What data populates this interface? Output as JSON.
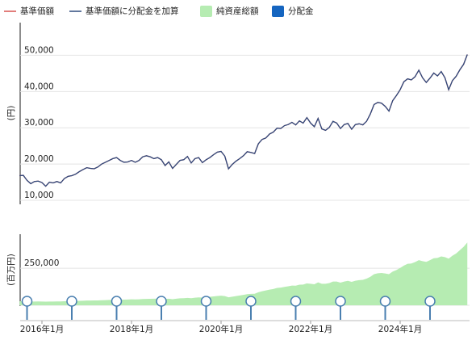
{
  "chart_data": {
    "type": "line",
    "ylabel": "(円)",
    "y2label": "(百万円)",
    "x": [
      "2015-07",
      "2015-08",
      "2015-09",
      "2015-10",
      "2015-11",
      "2015-12",
      "2016-01",
      "2016-02",
      "2016-03",
      "2016-04",
      "2016-05",
      "2016-06",
      "2016-07",
      "2016-08",
      "2016-09",
      "2016-10",
      "2016-11",
      "2016-12",
      "2017-01",
      "2017-02",
      "2017-03",
      "2017-04",
      "2017-05",
      "2017-06",
      "2017-07",
      "2017-08",
      "2017-09",
      "2017-10",
      "2017-11",
      "2017-12",
      "2018-01",
      "2018-02",
      "2018-03",
      "2018-04",
      "2018-05",
      "2018-06",
      "2018-07",
      "2018-08",
      "2018-09",
      "2018-10",
      "2018-11",
      "2018-12",
      "2019-01",
      "2019-02",
      "2019-03",
      "2019-04",
      "2019-05",
      "2019-06",
      "2019-07",
      "2019-08",
      "2019-09",
      "2019-10",
      "2019-11",
      "2019-12",
      "2020-01",
      "2020-02",
      "2020-03",
      "2020-04",
      "2020-05",
      "2020-06",
      "2020-07",
      "2020-08",
      "2020-09",
      "2020-10",
      "2020-11",
      "2020-12",
      "2021-01",
      "2021-02",
      "2021-03",
      "2021-04",
      "2021-05",
      "2021-06",
      "2021-07",
      "2021-08",
      "2021-09",
      "2021-10",
      "2021-11",
      "2021-12",
      "2022-01",
      "2022-02",
      "2022-03",
      "2022-04",
      "2022-05",
      "2022-06",
      "2022-07",
      "2022-08",
      "2022-09",
      "2022-10",
      "2022-11",
      "2022-12",
      "2023-01",
      "2023-02",
      "2023-03",
      "2023-04",
      "2023-05",
      "2023-06",
      "2023-07",
      "2023-08",
      "2023-09",
      "2023-10",
      "2023-11",
      "2023-12",
      "2024-01",
      "2024-02",
      "2024-03",
      "2024-04",
      "2024-05",
      "2024-06",
      "2024-07",
      "2024-08",
      "2024-09",
      "2024-10",
      "2024-11",
      "2024-12",
      "2025-01",
      "2025-02",
      "2025-03",
      "2025-04",
      "2025-05",
      "2025-06",
      "2025-07"
    ],
    "xticks": [
      {
        "value": "2016-01",
        "label": "2016年1月"
      },
      {
        "value": "2018-01",
        "label": "2018年1月"
      },
      {
        "value": "2020-01",
        "label": "2020年1月"
      },
      {
        "value": "2022-01",
        "label": "2022年1月"
      },
      {
        "value": "2024-01",
        "label": "2024年1月"
      }
    ],
    "ylim": [
      8900,
      59000
    ],
    "yticks": [
      {
        "value": 10000,
        "label": "10,000"
      },
      {
        "value": 20000,
        "label": "20,000"
      },
      {
        "value": 30000,
        "label": "30,000"
      },
      {
        "value": 40000,
        "label": "40,000"
      },
      {
        "value": 50000,
        "label": "50,000"
      }
    ],
    "y2lim": [
      0,
      480000
    ],
    "y2ticks": [
      0,
      {
        "value": 250000,
        "label": "250,000"
      }
    ],
    "grid": true,
    "series": [
      {
        "name": "基準価額",
        "color": "#d9534f",
        "values": [
          16800,
          16900,
          15500,
          14600,
          15200,
          15300,
          14900,
          13900,
          15000,
          14800,
          15200,
          14800,
          16000,
          16600,
          16800,
          17200,
          17900,
          18500,
          19000,
          18800,
          18700,
          19200,
          20000,
          20500,
          21000,
          21500,
          21800,
          21000,
          20500,
          20600,
          21000,
          20500,
          21000,
          22000,
          22300,
          22000,
          21500,
          21800,
          21200,
          19600,
          20600,
          18800,
          19900,
          21000,
          21200,
          22100,
          20300,
          21500,
          21800,
          20400,
          21200,
          21800,
          22600,
          23300,
          23500,
          22200,
          18700,
          19900,
          20800,
          21500,
          22300,
          23400,
          23200,
          22900,
          25600,
          26800,
          27200,
          28300,
          28800,
          29900,
          29800,
          30600,
          30900,
          31500,
          30800,
          31900,
          31300,
          32800,
          31300,
          30300,
          32600,
          29700,
          29300,
          30100,
          31800,
          31300,
          29800,
          30900,
          31200,
          29600,
          30900,
          31100,
          30800,
          31800,
          33800,
          36400,
          37000,
          36800,
          35900,
          34600,
          37500,
          38900,
          40500,
          42700,
          43500,
          43200,
          44100,
          45900,
          43800,
          42500,
          43700,
          45100,
          44300,
          45500,
          43800,
          40500,
          43000,
          44200,
          46000,
          47500,
          50200
        ]
      },
      {
        "name": "基準価額に分配金を加算",
        "color": "#2e4a7d",
        "values": [
          16800,
          16900,
          15500,
          14600,
          15200,
          15300,
          14900,
          13900,
          15000,
          14800,
          15200,
          14800,
          16000,
          16600,
          16800,
          17200,
          17900,
          18500,
          19000,
          18800,
          18700,
          19200,
          20000,
          20500,
          21000,
          21500,
          21800,
          21000,
          20500,
          20600,
          21000,
          20500,
          21000,
          22000,
          22300,
          22000,
          21500,
          21800,
          21200,
          19600,
          20600,
          18800,
          19900,
          21000,
          21200,
          22100,
          20300,
          21500,
          21800,
          20400,
          21200,
          21800,
          22600,
          23300,
          23500,
          22200,
          18700,
          19900,
          20800,
          21500,
          22300,
          23400,
          23200,
          22900,
          25600,
          26800,
          27200,
          28300,
          28800,
          29900,
          29800,
          30600,
          30900,
          31500,
          30800,
          31900,
          31300,
          32800,
          31300,
          30300,
          32600,
          29700,
          29300,
          30100,
          31800,
          31300,
          29800,
          30900,
          31200,
          29600,
          30900,
          31100,
          30800,
          31800,
          33800,
          36400,
          37000,
          36800,
          35900,
          34600,
          37500,
          38900,
          40500,
          42700,
          43500,
          43200,
          44100,
          45900,
          43800,
          42500,
          43700,
          45100,
          44300,
          45500,
          43800,
          40500,
          43000,
          44200,
          46000,
          47500,
          50200
        ]
      },
      {
        "name": "純資産総額",
        "color": "#b6ecb2",
        "type": "area",
        "axis": "y2",
        "values": [
          27000,
          27500,
          26000,
          25000,
          25500,
          26000,
          25500,
          24500,
          25500,
          25500,
          26000,
          26000,
          27000,
          28000,
          28500,
          29000,
          30000,
          31000,
          32000,
          32000,
          32500,
          33000,
          34000,
          35000,
          36000,
          37000,
          38000,
          38000,
          38500,
          39000,
          40000,
          39500,
          40500,
          42000,
          43000,
          43500,
          44000,
          45000,
          45000,
          42000,
          44000,
          41000,
          44000,
          47000,
          48000,
          50000,
          48000,
          51000,
          53000,
          52000,
          55000,
          57000,
          60000,
          63000,
          65000,
          62000,
          54000,
          58000,
          62000,
          66000,
          70000,
          75000,
          77000,
          78000,
          88000,
          95000,
          100000,
          106000,
          110000,
          117000,
          119000,
          124000,
          128000,
          133000,
          132000,
          139000,
          140000,
          148000,
          145000,
          142000,
          155000,
          145000,
          145000,
          150000,
          160000,
          160000,
          153000,
          160000,
          165000,
          158000,
          166000,
          170000,
          172000,
          180000,
          192000,
          210000,
          216000,
          218000,
          215000,
          210000,
          228000,
          238000,
          252000,
          268000,
          280000,
          282000,
          292000,
          305000,
          298000,
          293000,
          305000,
          318000,
          320000,
          330000,
          325000,
          315000,
          335000,
          350000,
          372000,
          395000,
          424000
        ]
      },
      {
        "name": "分配金",
        "color": "#1565c0",
        "type": "scatter",
        "axis": "y2",
        "x": [
          "2015-09",
          "2016-09",
          "2017-09",
          "2018-09",
          "2019-09",
          "2020-09",
          "2021-09",
          "2022-09",
          "2023-09",
          "2024-09"
        ],
        "values": [
          0,
          0,
          0,
          0,
          0,
          0,
          0,
          0,
          0,
          0
        ]
      }
    ]
  }
}
